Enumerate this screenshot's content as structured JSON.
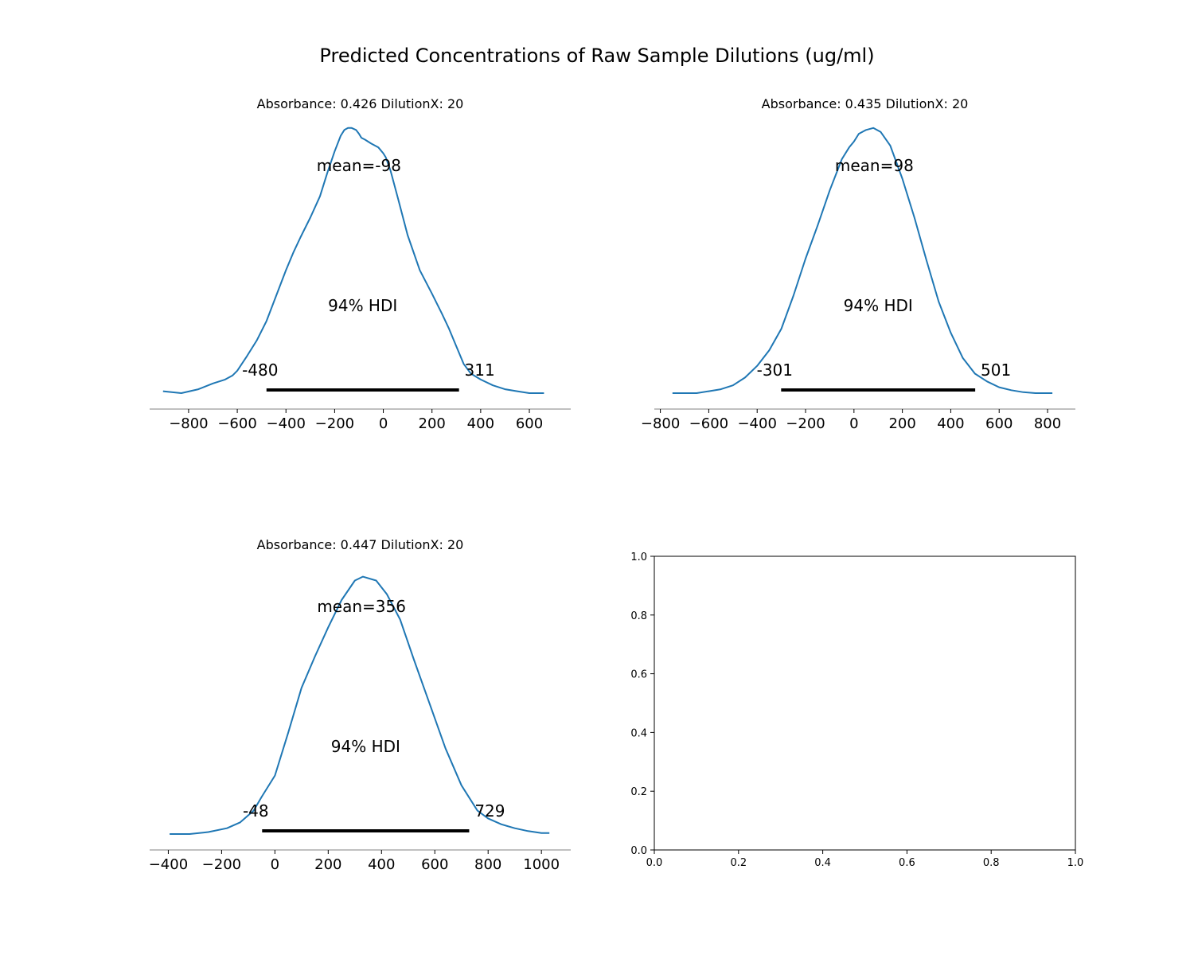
{
  "figure": {
    "title": "Predicted Concentrations of Raw Sample Dilutions (ug/ml)"
  },
  "colors": {
    "curve": "#1f77b4",
    "hdi_bar": "#000000",
    "axis": "#808080"
  },
  "chart_data": [
    {
      "type": "line",
      "title": "Absorbance: 0.426 DilutionX: 20",
      "xlim": [
        -960,
        770
      ],
      "xticks": [
        -800,
        -600,
        -400,
        -200,
        0,
        200,
        400,
        600
      ],
      "xtick_labels": [
        "−800",
        "−600",
        "−400",
        "−200",
        "0",
        "200",
        "400",
        "600"
      ],
      "x": [
        -905,
        -830,
        -760,
        -700,
        -650,
        -620,
        -600,
        -560,
        -520,
        -480,
        -440,
        -400,
        -370,
        -340,
        -300,
        -260,
        -230,
        -200,
        -175,
        -160,
        -145,
        -130,
        -112,
        -100,
        -90,
        -75,
        -50,
        -20,
        0,
        10,
        30,
        60,
        100,
        150,
        200,
        240,
        270,
        300,
        330,
        360,
        400,
        450,
        500,
        550,
        600,
        660
      ],
      "y": [
        0.01,
        0.0,
        0.02,
        0.05,
        0.07,
        0.09,
        0.115,
        0.19,
        0.27,
        0.37,
        0.5,
        0.63,
        0.72,
        0.8,
        0.9,
        1.01,
        1.13,
        1.24,
        1.32,
        1.35,
        1.36,
        1.36,
        1.35,
        1.33,
        1.31,
        1.3,
        1.28,
        1.26,
        1.23,
        1.21,
        1.14,
        1.0,
        0.81,
        0.63,
        0.51,
        0.41,
        0.33,
        0.24,
        0.15,
        0.1,
        0.07,
        0.04,
        0.02,
        0.01,
        0.0,
        0.0
      ],
      "mean_label": "mean=-98",
      "hdi_label": "94% HDI",
      "hdi": [
        -480,
        311
      ],
      "hdi_low_label": "-480",
      "hdi_high_label": "311"
    },
    {
      "type": "line",
      "title": "Absorbance: 0.435 DilutionX: 20",
      "xlim": [
        -825,
        915
      ],
      "xticks": [
        -800,
        -600,
        -400,
        -200,
        0,
        200,
        400,
        600,
        800
      ],
      "xtick_labels": [
        "−800",
        "−600",
        "−400",
        "−200",
        "0",
        "200",
        "400",
        "600",
        "800"
      ],
      "x": [
        -750,
        -700,
        -650,
        -600,
        -550,
        -500,
        -450,
        -400,
        -350,
        -300,
        -250,
        -200,
        -150,
        -100,
        -50,
        -20,
        0,
        20,
        50,
        80,
        110,
        150,
        200,
        250,
        300,
        350,
        400,
        450,
        500,
        550,
        600,
        650,
        700,
        750,
        820
      ],
      "y": [
        0.0,
        0.0,
        0.0,
        0.01,
        0.02,
        0.04,
        0.08,
        0.14,
        0.22,
        0.33,
        0.5,
        0.69,
        0.86,
        1.04,
        1.2,
        1.26,
        1.29,
        1.33,
        1.35,
        1.36,
        1.34,
        1.27,
        1.1,
        0.9,
        0.68,
        0.47,
        0.31,
        0.18,
        0.1,
        0.06,
        0.03,
        0.015,
        0.005,
        0.0,
        0.0
      ],
      "mean_label": "mean=98",
      "hdi_label": "94% HDI",
      "hdi": [
        -301,
        501
      ],
      "hdi_low_label": "-301",
      "hdi_high_label": "501"
    },
    {
      "type": "line",
      "title": "Absorbance: 0.447 DilutionX: 20",
      "xlim": [
        -470,
        1110
      ],
      "xticks": [
        -400,
        -200,
        0,
        200,
        400,
        600,
        800,
        1000
      ],
      "xtick_labels": [
        "−400",
        "−200",
        "0",
        "200",
        "400",
        "600",
        "800",
        "1000"
      ],
      "x": [
        -395,
        -320,
        -250,
        -180,
        -130,
        -80,
        -50,
        0,
        50,
        100,
        150,
        200,
        250,
        300,
        330,
        380,
        420,
        470,
        520,
        580,
        640,
        700,
        760,
        800,
        850,
        900,
        950,
        1000,
        1030
      ],
      "y": [
        0.0,
        0.0,
        0.01,
        0.03,
        0.06,
        0.12,
        0.19,
        0.3,
        0.52,
        0.75,
        0.91,
        1.06,
        1.2,
        1.3,
        1.32,
        1.3,
        1.23,
        1.1,
        0.9,
        0.67,
        0.44,
        0.25,
        0.12,
        0.08,
        0.05,
        0.03,
        0.015,
        0.005,
        0.005
      ],
      "mean_label": "mean=356",
      "hdi_label": "94% HDI",
      "hdi": [
        -48,
        729
      ],
      "hdi_low_label": "-48",
      "hdi_high_label": "729"
    },
    {
      "type": "line",
      "title": "",
      "xlim": [
        0,
        1
      ],
      "ylim": [
        0,
        1
      ],
      "xticks": [
        0,
        0.2,
        0.4,
        0.6,
        0.8,
        1.0
      ],
      "xtick_labels": [
        "0.0",
        "0.2",
        "0.4",
        "0.6",
        "0.8",
        "1.0"
      ],
      "yticks": [
        0,
        0.2,
        0.4,
        0.6,
        0.8,
        1.0
      ],
      "ytick_labels": [
        "0.0",
        "0.2",
        "0.4",
        "0.6",
        "0.8",
        "1.0"
      ]
    }
  ]
}
